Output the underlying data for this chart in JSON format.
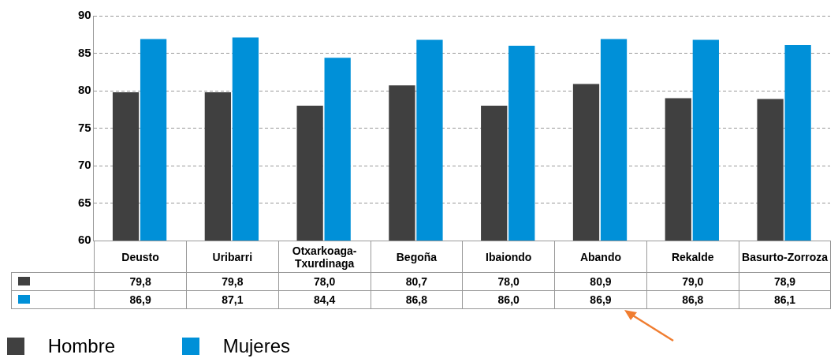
{
  "chart_data": {
    "type": "bar",
    "categories": [
      "Deusto",
      "Uribarri",
      "Otxarkoaga-Txurdinaga",
      "Begoña",
      "Ibaiondo",
      "Abando",
      "Rekalde",
      "Basurto-Zorroza"
    ],
    "series": [
      {
        "name": "Hombre",
        "color": "#404040",
        "values": [
          79.8,
          79.8,
          78.0,
          80.7,
          78.0,
          80.9,
          79.0,
          78.9
        ],
        "value_labels": [
          "79,8",
          "79,8",
          "78,0",
          "80,7",
          "78,0",
          "80,9",
          "79,0",
          "78,9"
        ]
      },
      {
        "name": "Mujeres",
        "color": "#0090d8",
        "values": [
          86.9,
          87.1,
          84.4,
          86.8,
          86.0,
          86.9,
          86.8,
          86.1
        ],
        "value_labels": [
          "86,9",
          "87,1",
          "84,4",
          "86,8",
          "86,0",
          "86,9",
          "86,8",
          "86,1"
        ]
      }
    ],
    "ylim": [
      60,
      90
    ],
    "yticks": [
      60,
      65,
      70,
      75,
      80,
      85,
      90
    ],
    "grid": "y",
    "legend": "bottom"
  }
}
